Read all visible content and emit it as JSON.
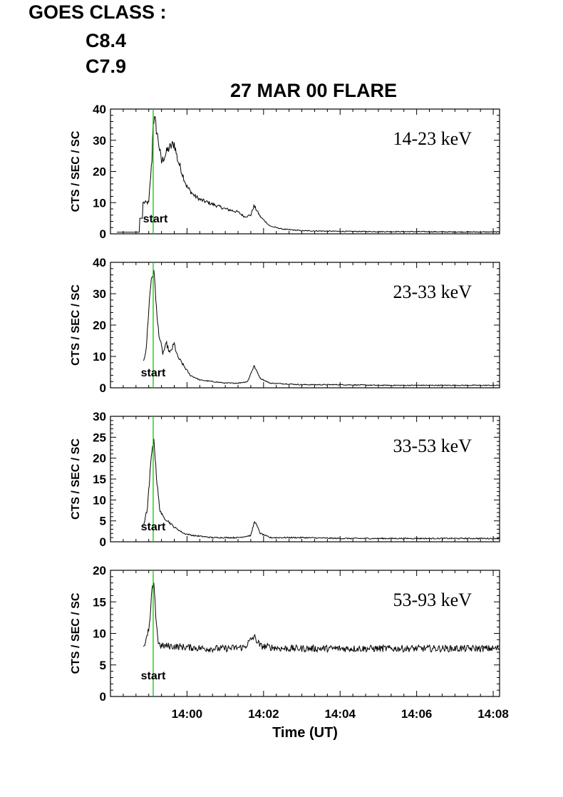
{
  "header": {
    "goes_label": "GOES CLASS :",
    "goes_classes": [
      "C8.4",
      "C7.9"
    ],
    "title": "27 MAR 00 FLARE"
  },
  "colors": {
    "trace": "#000000",
    "start_line": "#00cc00"
  },
  "chart_data": [
    {
      "type": "line",
      "band_label": "14-23 keV",
      "ylabel": "CTS / SEC / SC",
      "ylim": [
        0,
        40
      ],
      "yticks": [
        0,
        10,
        20,
        30,
        40
      ],
      "marker": {
        "label": "start",
        "x": "13:59:07"
      },
      "series": [
        {
          "x": [
            "13:58:10",
            "13:58:45",
            "13:58:46",
            "13:58:50",
            "13:58:51",
            "13:59:00",
            "13:59:05",
            "13:59:07",
            "13:59:10",
            "13:59:15",
            "13:59:20",
            "13:59:30",
            "13:59:40",
            "13:59:45",
            "13:59:50",
            "14:00:00",
            "14:00:10",
            "14:00:20",
            "14:00:40",
            "14:01:00",
            "14:01:20",
            "14:01:30",
            "14:01:40",
            "14:01:45",
            "14:01:55",
            "14:02:10",
            "14:02:30",
            "14:03:00",
            "14:04:00",
            "14:05:00",
            "14:06:00",
            "14:07:00",
            "14:08:10"
          ],
          "values": [
            0.5,
            0.5,
            5,
            5,
            10,
            10,
            24,
            37,
            36,
            30,
            23,
            27,
            29,
            24,
            21,
            15,
            12.5,
            11,
            9.5,
            8,
            7,
            5.5,
            6,
            9,
            5.5,
            2.5,
            1.5,
            1,
            0.8,
            0.7,
            0.7,
            0.6,
            0.6
          ]
        }
      ]
    },
    {
      "type": "line",
      "band_label": "23-33 keV",
      "ylabel": "CTS / SEC / SC",
      "ylim": [
        0,
        40
      ],
      "yticks": [
        0,
        10,
        20,
        30,
        40
      ],
      "marker": {
        "label": "start",
        "x": "13:59:07"
      },
      "series": [
        {
          "x": [
            "13:58:52",
            "13:58:56",
            "13:59:00",
            "13:59:04",
            "13:59:07",
            "13:59:10",
            "13:59:13",
            "13:59:17",
            "13:59:22",
            "13:59:28",
            "13:59:33",
            "13:59:40",
            "13:59:45",
            "13:59:55",
            "14:00:05",
            "14:00:20",
            "14:00:40",
            "14:01:00",
            "14:01:20",
            "14:01:35",
            "14:01:45",
            "14:01:55",
            "14:02:10",
            "14:03:00",
            "14:04:00",
            "14:05:00",
            "14:06:00",
            "14:07:00",
            "14:08:10"
          ],
          "values": [
            9,
            12,
            25,
            35,
            37,
            33,
            22,
            16,
            11,
            14,
            11,
            14,
            10,
            7,
            4,
            2.5,
            2,
            1.5,
            1.5,
            2,
            7,
            3,
            1.5,
            1,
            1,
            0.8,
            0.8,
            0.8,
            0.8
          ]
        }
      ]
    },
    {
      "type": "line",
      "band_label": "33-53 keV",
      "ylabel": "CTS / SEC / SC",
      "ylim": [
        0,
        30
      ],
      "yticks": [
        0,
        5,
        10,
        15,
        20,
        25,
        30
      ],
      "marker": {
        "label": "start",
        "x": "13:59:07"
      },
      "series": [
        {
          "x": [
            "13:58:52",
            "13:58:58",
            "13:59:02",
            "13:59:06",
            "13:59:09",
            "13:59:13",
            "13:59:17",
            "13:59:22",
            "13:59:30",
            "13:59:40",
            "13:59:55",
            "14:00:10",
            "14:00:40",
            "14:01:20",
            "14:01:40",
            "14:01:46",
            "14:01:55",
            "14:02:10",
            "14:03:00",
            "14:04:00",
            "14:05:00",
            "14:06:00",
            "14:07:00",
            "14:08:10"
          ],
          "values": [
            4,
            8,
            16,
            24,
            23,
            14,
            8,
            6,
            5,
            3.5,
            2,
            1.5,
            1,
            1,
            1.5,
            5,
            2,
            1,
            1,
            0.8,
            0.8,
            0.8,
            0.8,
            0.8
          ]
        }
      ]
    },
    {
      "type": "line",
      "band_label": "53-93 keV",
      "ylabel": "CTS / SEC / SC",
      "ylim": [
        0,
        20
      ],
      "yticks": [
        0,
        5,
        10,
        15,
        20
      ],
      "marker": {
        "label": "start",
        "x": "13:59:07"
      },
      "series": [
        {
          "x": [
            "13:58:52",
            "13:58:58",
            "13:59:02",
            "13:59:05",
            "13:59:08",
            "13:59:11",
            "13:59:15",
            "13:59:20",
            "13:59:30",
            "14:00:00",
            "14:00:30",
            "14:01:00",
            "14:01:30",
            "14:01:45",
            "14:01:55",
            "14:02:30",
            "14:03:00",
            "14:04:00",
            "14:05:00",
            "14:06:00",
            "14:07:00",
            "14:08:10"
          ],
          "values": [
            8,
            9.5,
            12,
            17,
            17.5,
            13,
            8.5,
            8,
            8,
            7.8,
            7.6,
            7.6,
            7.8,
            9.5,
            8,
            7.6,
            7.6,
            7.6,
            7.6,
            7.6,
            7.6,
            7.6
          ]
        }
      ]
    }
  ],
  "x_axis": {
    "label": "Time (UT)",
    "range": [
      "13:58:00",
      "14:08:10"
    ],
    "major_ticks": [
      "14:00",
      "14:02",
      "14:04",
      "14:06",
      "14:08"
    ]
  }
}
